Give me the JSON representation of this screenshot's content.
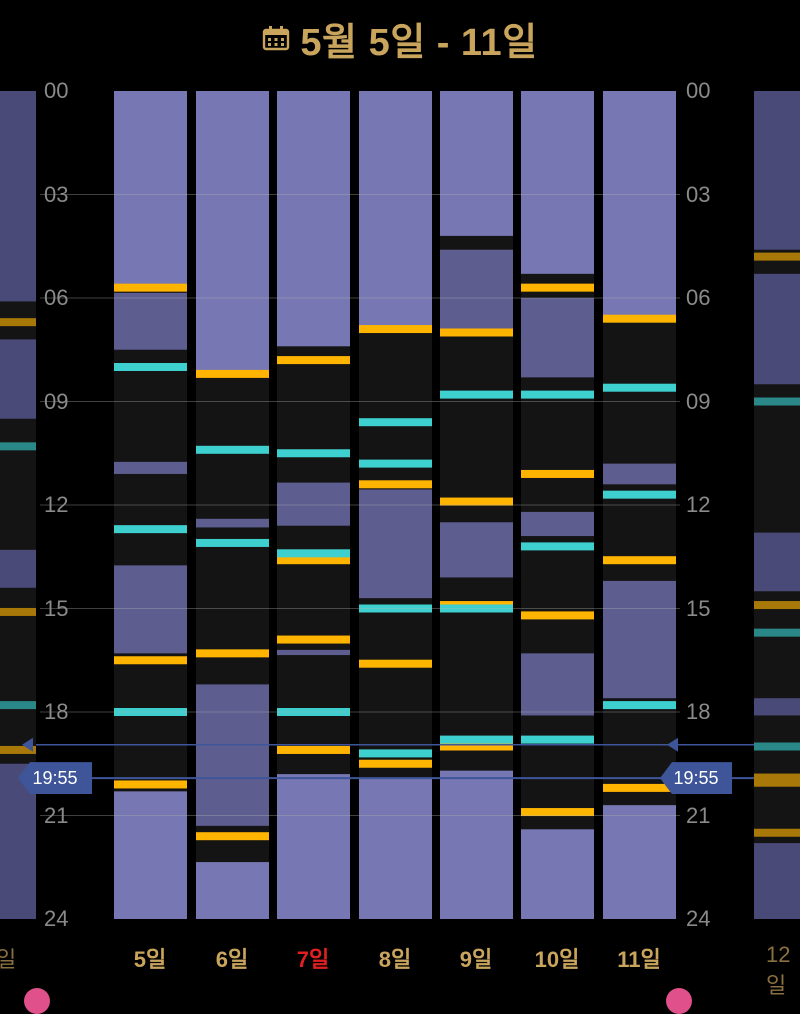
{
  "header": {
    "title": "5월 5일 - 11일",
    "icon": "calendar-icon"
  },
  "hour_labels": [
    "00",
    "03",
    "06",
    "09",
    "12",
    "15",
    "18",
    "21",
    "24"
  ],
  "current_time": "19:55",
  "prev_day_label": "일",
  "next_day_label": "12일",
  "colors": {
    "sleep": "#7777b3",
    "nap": "#5d5d90",
    "awake": "#141414",
    "feed": "#ffb400",
    "diaper": "#3ecfcf",
    "time_line": "#3e5699",
    "label": "#c9a45c",
    "sunday": "#e02020"
  },
  "days": [
    {
      "label": "5일",
      "sleep": [
        [
          0,
          5.6
        ],
        [
          5.85,
          7.5
        ],
        [
          10.75,
          11.1
        ],
        [
          13.75,
          16.3
        ],
        [
          20.3,
          24
        ]
      ],
      "feed": [
        5.7,
        16.5,
        20.1
      ],
      "diaper": [
        8.0,
        12.7,
        18.0
      ]
    },
    {
      "label": "6일",
      "sleep": [
        [
          0,
          8.1
        ],
        [
          12.4,
          12.65
        ],
        [
          17.2,
          21.3
        ],
        [
          22.35,
          24
        ]
      ],
      "feed": [
        8.2,
        16.3,
        21.6
      ],
      "diaper": [
        10.4,
        13.1
      ]
    },
    {
      "label": "7일",
      "label_sunday": true,
      "sleep": [
        [
          0,
          7.4
        ],
        [
          11.35,
          12.6
        ],
        [
          16.2,
          16.35
        ],
        [
          19.8,
          24
        ]
      ],
      "feed": [
        7.8,
        13.6,
        15.9,
        19.1
      ],
      "diaper": [
        10.5,
        13.4,
        18.0
      ]
    },
    {
      "label": "8일",
      "sleep": [
        [
          0,
          6.8
        ],
        [
          11.55,
          14.7
        ],
        [
          19.9,
          24
        ]
      ],
      "feed": [
        6.9,
        11.4,
        16.6,
        19.5
      ],
      "diaper": [
        9.6,
        10.8,
        15.0,
        19.2
      ]
    },
    {
      "label": "9일",
      "sleep": [
        [
          0,
          4.2
        ],
        [
          4.6,
          6.9
        ],
        [
          12.5,
          14.1
        ],
        [
          19.7,
          24
        ]
      ],
      "feed": [
        7.0,
        11.9,
        14.9,
        19.0
      ],
      "diaper": [
        8.8,
        15.0,
        18.8
      ]
    },
    {
      "label": "10일",
      "sleep": [
        [
          0,
          5.3
        ],
        [
          6.0,
          8.3
        ],
        [
          12.2,
          12.9
        ],
        [
          16.3,
          18.1
        ],
        [
          21.4,
          24
        ]
      ],
      "feed": [
        5.7,
        11.1,
        15.2,
        20.9
      ],
      "diaper": [
        8.8,
        13.2,
        18.8
      ]
    },
    {
      "label": "11일",
      "sleep": [
        [
          0,
          6.6
        ],
        [
          10.8,
          11.4
        ],
        [
          14.2,
          17.6
        ],
        [
          20.7,
          24
        ]
      ],
      "feed": [
        6.6,
        13.6,
        20.2
      ],
      "diaper": [
        8.6,
        11.7,
        17.8
      ]
    }
  ],
  "prev_partial": {
    "sleep": [
      [
        0,
        6.1
      ],
      [
        7.2,
        9.5
      ],
      [
        13.3,
        14.4
      ],
      [
        19.5,
        24
      ]
    ],
    "feed": [
      6.7,
      15.1,
      19.1
    ],
    "diaper": [
      10.3,
      17.8
    ]
  },
  "next_partial": {
    "sleep": [
      [
        0,
        4.6
      ],
      [
        5.3,
        8.5
      ],
      [
        12.8,
        14.5
      ],
      [
        17.6,
        18.1
      ],
      [
        21.8,
        24
      ]
    ],
    "feed": [
      4.8,
      14.9,
      19.9,
      20.05,
      21.5
    ],
    "diaper": [
      9.0,
      15.7,
      19.0
    ]
  }
}
